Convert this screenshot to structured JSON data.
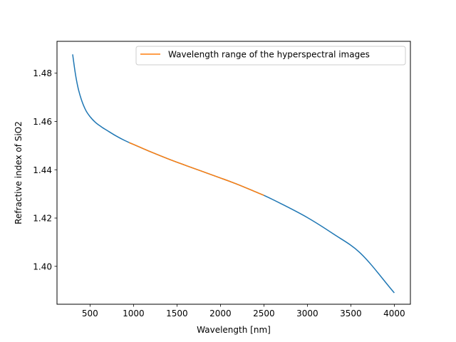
{
  "chart_data": {
    "type": "line",
    "xlabel": "Wavelength [nm]",
    "ylabel": "Refractive index of SiO2",
    "xlim": [
      120,
      4185
    ],
    "ylim": [
      1.3843,
      1.4932
    ],
    "xticks": [
      500,
      1000,
      1500,
      2000,
      2500,
      3000,
      3500,
      4000
    ],
    "xtick_labels": [
      "500",
      "1000",
      "1500",
      "2000",
      "2500",
      "3000",
      "3500",
      "4000"
    ],
    "yticks": [
      1.4,
      1.42,
      1.44,
      1.46,
      1.48
    ],
    "ytick_labels": [
      "1.40",
      "1.42",
      "1.44",
      "1.46",
      "1.48"
    ],
    "grid": false,
    "legend_position": "upper right",
    "series": [
      {
        "name": "",
        "color": "#1f77b4",
        "x": [
          300,
          330,
          360,
          400,
          450,
          500,
          560,
          630,
          700,
          800,
          900,
          1000,
          1200,
          1400,
          1600,
          1800,
          2000,
          2200,
          2400,
          2500,
          2700,
          3000,
          3300,
          3600,
          4000
        ],
        "y": [
          1.4878,
          1.4801,
          1.4743,
          1.4691,
          1.4647,
          1.462,
          1.4597,
          1.4578,
          1.4562,
          1.454,
          1.4521,
          1.4505,
          1.4474,
          1.4445,
          1.4418,
          1.4392,
          1.4366,
          1.4339,
          1.4309,
          1.4294,
          1.4259,
          1.4202,
          1.4134,
          1.4058,
          1.389
        ]
      },
      {
        "name": "Wavelength range of the hyperspectral images",
        "color": "#ff7f0e",
        "x": [
          950,
          1000,
          1200,
          1400,
          1600,
          1800,
          2000,
          2200,
          2400,
          2500
        ],
        "y": [
          1.4512,
          1.4505,
          1.4474,
          1.4445,
          1.4418,
          1.4392,
          1.4366,
          1.4339,
          1.4309,
          1.4294
        ]
      }
    ]
  }
}
